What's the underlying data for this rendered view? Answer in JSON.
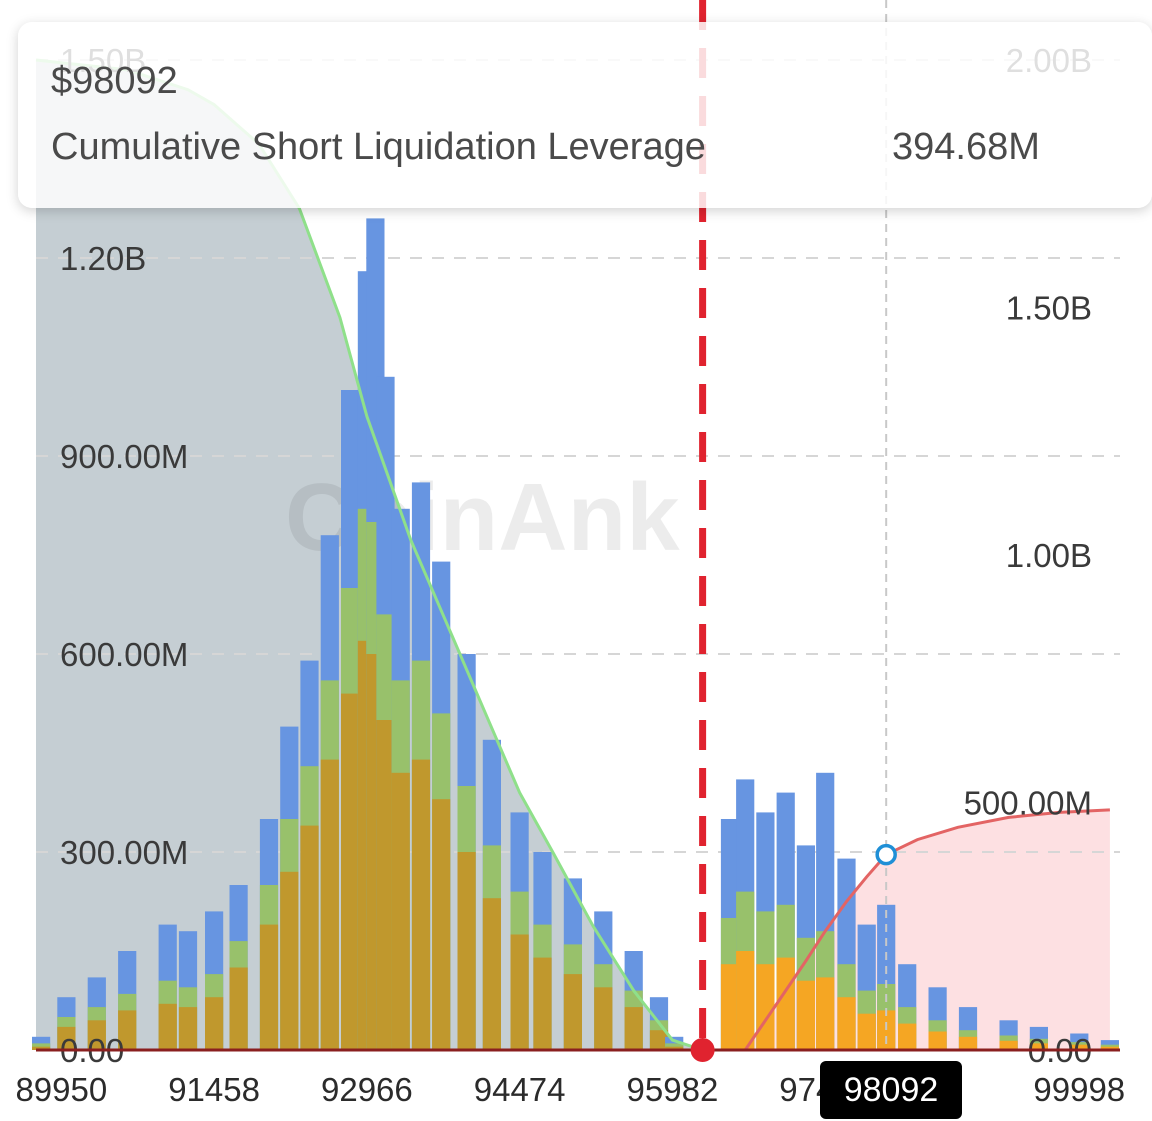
{
  "tooltip": {
    "price": "$98092",
    "label": "Cumulative Short Liquidation Leverage",
    "value": "394.68M"
  },
  "cursor_label": "98092",
  "watermark": "CoinAnk",
  "colors": {
    "blue": "#6795e1",
    "green": "#98c16b",
    "orange_left": "#c0982d",
    "orange_right": "#f5a623",
    "long_fill": "#c5ced3",
    "long_line": "#8fe08a",
    "short_fill": "#fde0e2",
    "short_line": "#e36464",
    "current_price": "#e0232f",
    "cursor_marker": "#1f8fd6"
  },
  "chart_data": {
    "type": "bar",
    "title": "",
    "xlabel": "",
    "ylabel": "",
    "x_ticks": [
      "89950",
      "91458",
      "92966",
      "94474",
      "95982",
      "97490",
      "98092",
      "99998"
    ],
    "x_range": [
      89700,
      100400
    ],
    "y_left": {
      "ticks": [
        "0.00",
        "300.00M",
        "600.00M",
        "900.00M",
        "1.20B",
        "1.50B"
      ],
      "range_M": [
        0,
        1500
      ]
    },
    "y_right": {
      "ticks": [
        "0.00",
        "500.00M",
        "1.00B",
        "1.50B",
        "2.00B"
      ],
      "range_M": [
        0,
        2000
      ]
    },
    "current_price": 96280,
    "cursor_price": 98092,
    "cursor_value_M": 394.68,
    "series": [
      {
        "name": "Liquidation leverage (blue)",
        "kind": "bars",
        "x": [
          89750,
          90000,
          90300,
          90600,
          91000,
          91200,
          91458,
          91700,
          92000,
          92200,
          92400,
          92600,
          92800,
          92966,
          93050,
          93150,
          93300,
          93500,
          93700,
          93950,
          94200,
          94474,
          94700,
          95000,
          95300,
          95600,
          95850,
          96000,
          96550,
          96700,
          96900,
          97100,
          97300,
          97490,
          97700,
          97900,
          98092,
          98300,
          98600,
          98900,
          99300,
          99600,
          99998,
          100300
        ],
        "values": [
          20,
          80,
          110,
          150,
          190,
          180,
          210,
          250,
          350,
          490,
          590,
          780,
          1000,
          1180,
          1260,
          1020,
          820,
          860,
          740,
          600,
          470,
          360,
          300,
          260,
          210,
          150,
          80,
          20,
          350,
          410,
          360,
          390,
          310,
          420,
          290,
          190,
          220,
          130,
          95,
          65,
          45,
          35,
          25,
          15
        ]
      },
      {
        "name": "Liquidation leverage (green)",
        "kind": "bars",
        "x": [
          89750,
          90000,
          90300,
          90600,
          91000,
          91200,
          91458,
          91700,
          92000,
          92200,
          92400,
          92600,
          92800,
          92966,
          93050,
          93150,
          93300,
          93500,
          93700,
          93950,
          94200,
          94474,
          94700,
          95000,
          95300,
          95600,
          95850,
          96000,
          96550,
          96700,
          96900,
          97100,
          97300,
          97490,
          97700,
          97900,
          98092,
          98300,
          98600,
          98900,
          99300,
          99600,
          99998,
          100300
        ],
        "values": [
          10,
          50,
          65,
          85,
          105,
          95,
          115,
          165,
          250,
          350,
          430,
          560,
          700,
          820,
          800,
          660,
          560,
          590,
          510,
          400,
          310,
          240,
          190,
          160,
          130,
          90,
          45,
          10,
          200,
          240,
          210,
          220,
          170,
          180,
          130,
          90,
          100,
          65,
          45,
          30,
          22,
          17,
          12,
          8
        ]
      },
      {
        "name": "Liquidation leverage (orange)",
        "kind": "bars",
        "x": [
          89750,
          90000,
          90300,
          90600,
          91000,
          91200,
          91458,
          91700,
          92000,
          92200,
          92400,
          92600,
          92800,
          92966,
          93050,
          93150,
          93300,
          93500,
          93700,
          93950,
          94200,
          94474,
          94700,
          95000,
          95300,
          95600,
          95850,
          96000,
          96550,
          96700,
          96900,
          97100,
          97300,
          97490,
          97700,
          97900,
          98092,
          98300,
          98600,
          98900,
          99300,
          99600,
          99998,
          100300
        ],
        "values": [
          5,
          35,
          45,
          60,
          70,
          65,
          80,
          125,
          190,
          270,
          340,
          440,
          540,
          620,
          600,
          500,
          420,
          440,
          380,
          300,
          230,
          175,
          140,
          115,
          95,
          65,
          30,
          5,
          130,
          150,
          130,
          140,
          105,
          110,
          80,
          55,
          60,
          40,
          28,
          20,
          14,
          10,
          8,
          5
        ]
      },
      {
        "name": "Cumulative Long Liquidation Leverage",
        "kind": "area",
        "axis": "right",
        "x": [
          89700,
          90600,
          91200,
          91458,
          91900,
          92300,
          92700,
          92966,
          93400,
          93800,
          94200,
          94474,
          94800,
          95200,
          95600,
          95982,
          96280
        ],
        "values": [
          2000,
          1980,
          1940,
          1910,
          1830,
          1700,
          1480,
          1280,
          1030,
          840,
          650,
          520,
          400,
          250,
          120,
          20,
          0
        ]
      },
      {
        "name": "Cumulative Short Liquidation Leverage",
        "kind": "area",
        "axis": "right",
        "x": [
          96280,
          96700,
          97000,
          97300,
          97490,
          97700,
          97900,
          98092,
          98400,
          98800,
          99300,
          99800,
          100300
        ],
        "values": [
          0,
          0,
          90,
          180,
          240,
          300,
          350,
          394.68,
          425,
          450,
          470,
          480,
          485
        ]
      }
    ]
  }
}
